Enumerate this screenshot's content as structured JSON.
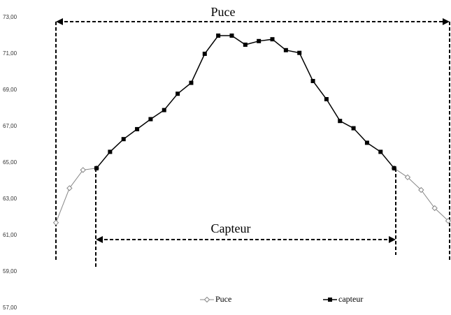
{
  "chart_data": {
    "type": "line",
    "annotations": [
      "Puce",
      "Capteur"
    ],
    "series": [
      {
        "name": "Puce",
        "color": "#888888",
        "marker": "diamond",
        "values": [
          61.7,
          63.6,
          64.6,
          64.7,
          null,
          null,
          null,
          null,
          null,
          null,
          null,
          null,
          null,
          null,
          null,
          null,
          null,
          null,
          null,
          null,
          null,
          null,
          null,
          null,
          null,
          64.7,
          64.2,
          63.5,
          62.5,
          61.8
        ]
      },
      {
        "name": "capteur",
        "color": "#000000",
        "marker": "square",
        "values": [
          null,
          null,
          null,
          64.7,
          65.6,
          66.3,
          66.85,
          67.4,
          67.9,
          68.8,
          69.4,
          71.0,
          72.0,
          72.0,
          71.5,
          71.7,
          71.8,
          71.2,
          71.05,
          69.5,
          68.5,
          67.3,
          66.9,
          66.1,
          65.6,
          64.7,
          null,
          null,
          null,
          null
        ]
      }
    ],
    "ylim": [
      57,
      73
    ],
    "yticks": [
      {
        "value": 57,
        "label": "57,00"
      },
      {
        "value": 59,
        "label": "59,00"
      },
      {
        "value": 61,
        "label": "61,00"
      },
      {
        "value": 63,
        "label": "63,00"
      },
      {
        "value": 65,
        "label": "65,00"
      },
      {
        "value": 67,
        "label": "67,00"
      },
      {
        "value": 69,
        "label": "69,00"
      },
      {
        "value": 71,
        "label": "71,00"
      },
      {
        "value": 73,
        "label": "73,00"
      }
    ]
  }
}
